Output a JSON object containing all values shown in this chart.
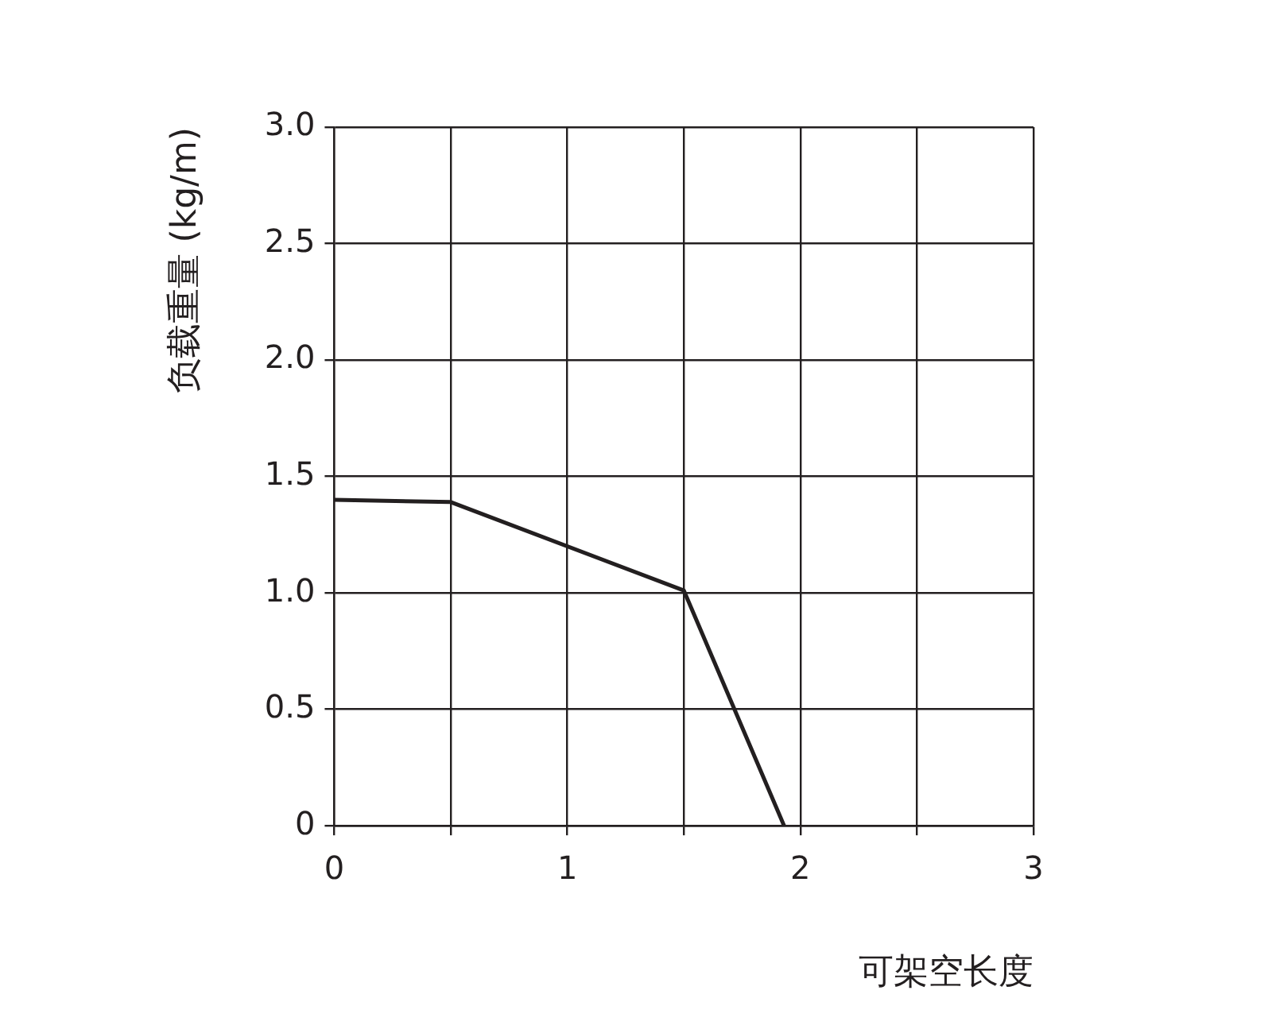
{
  "chart_data": {
    "type": "line",
    "xlabel": "可架空长度",
    "ylabel": "负载重量 (kg/m)",
    "xlim": [
      0,
      3
    ],
    "ylim": [
      0,
      3
    ],
    "xticks": [
      0,
      {
        "value": 0.5,
        "label": null
      },
      1,
      {
        "value": 1.5,
        "label": null
      },
      2,
      {
        "value": 2.5,
        "label": null
      },
      3
    ],
    "yticks": [
      0,
      0.5,
      {
        "value": 1,
        "label": "1.0"
      },
      1.5,
      {
        "value": 2,
        "label": "2.0"
      },
      2.5,
      {
        "value": 3,
        "label": "3.0"
      }
    ],
    "grid": true,
    "legend": false,
    "marker": "none",
    "line_style": "solid",
    "series": [
      {
        "color": "#231f20",
        "x": [
          0,
          0.5,
          1.5,
          1.93
        ],
        "values": [
          1.4,
          1.39,
          1.01,
          0
        ]
      }
    ]
  }
}
